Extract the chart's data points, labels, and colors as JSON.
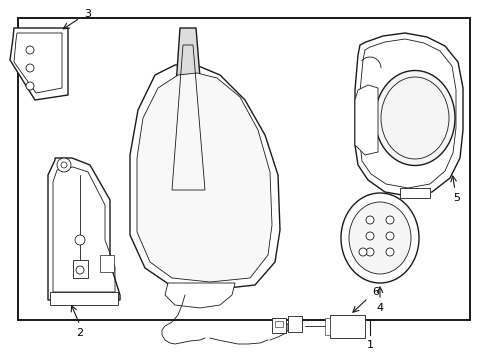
{
  "background_color": "#ffffff",
  "border_color": "#1a1a1a",
  "line_color": "#1a1a1a",
  "text_color": "#000000",
  "fig_width": 4.89,
  "fig_height": 3.6,
  "dpi": 100,
  "lw_main": 1.0,
  "lw_thin": 0.6,
  "lw_thick": 1.4
}
